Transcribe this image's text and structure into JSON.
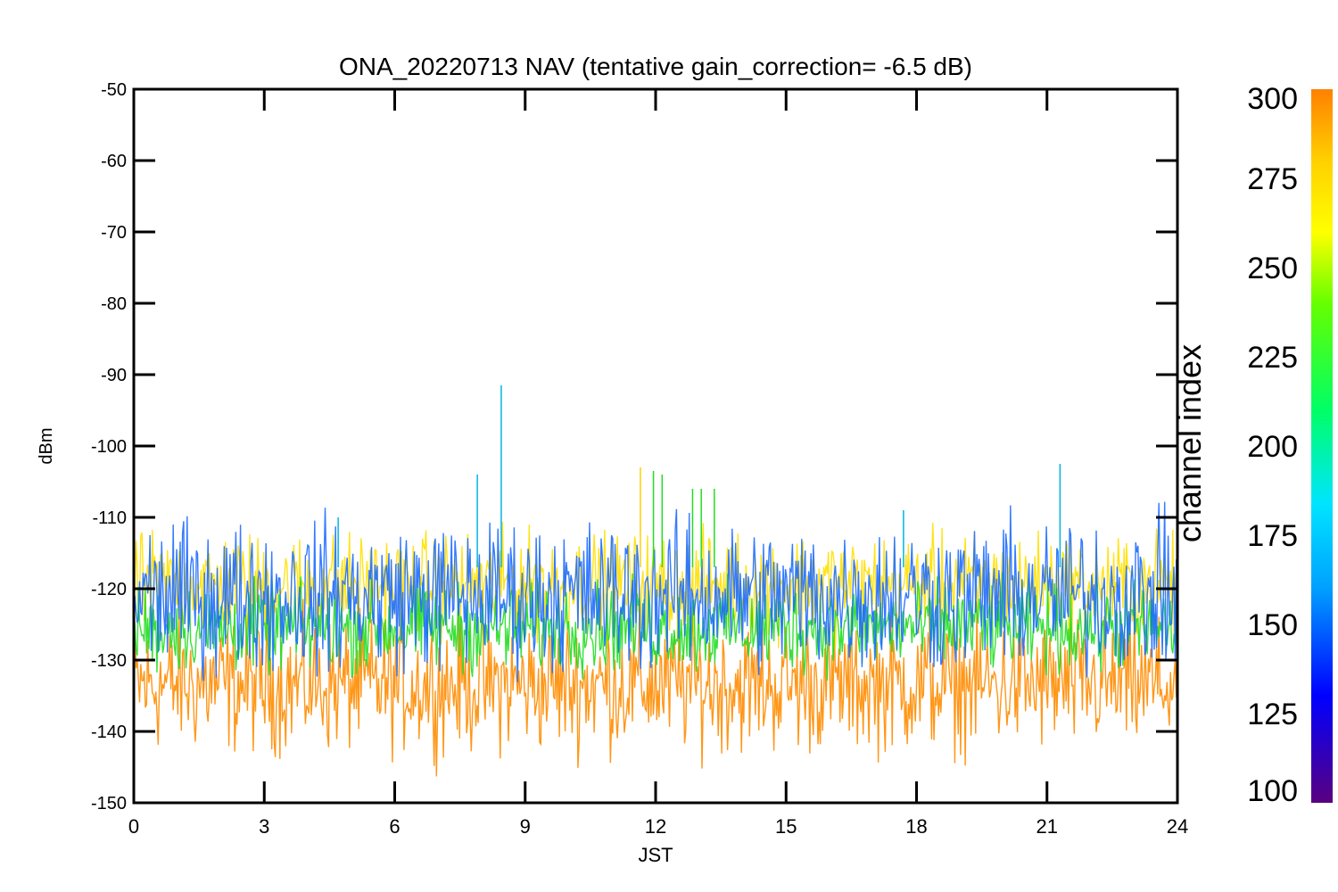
{
  "chart_data": {
    "type": "line",
    "title": "ONA_20220713 NAV (tentative gain_correction= -6.5 dB)",
    "xlabel": "JST",
    "ylabel": "dBm",
    "xlim": [
      0,
      24
    ],
    "ylim": [
      -150,
      -50
    ],
    "xticks": [
      "0",
      "3",
      "6",
      "9",
      "12",
      "15",
      "18",
      "21",
      "24"
    ],
    "yticks": [
      "-50",
      "-60",
      "-70",
      "-80",
      "-90",
      "-100",
      "-110",
      "-120",
      "-130",
      "-140",
      "-150"
    ],
    "grid": false,
    "colorbar": {
      "label": "channel index",
      "range": [
        100,
        300
      ],
      "ticks": [
        "300",
        "275",
        "250",
        "225",
        "200",
        "175",
        "150",
        "125",
        "100"
      ],
      "colors": [
        "#5a0080",
        "#0000ff",
        "#00a0ff",
        "#00e5ff",
        "#00ff66",
        "#66ff00",
        "#ffff00",
        "#ffd000",
        "#ff8000"
      ]
    },
    "bands": [
      {
        "channel_index": 300,
        "color": "#ff8c00",
        "y_mean": -133.5,
        "y_spread": 4.5
      },
      {
        "channel_index": 270,
        "color": "#ffe000",
        "y_mean": -119.5,
        "y_spread": 3.5
      },
      {
        "channel_index": 240,
        "color": "#22dd22",
        "y_mean": -125.5,
        "y_spread": 3.0
      },
      {
        "channel_index": 160,
        "color": "#1e6cff",
        "y_mean": -121.0,
        "y_spread": 5.0
      }
    ],
    "spikes": [
      {
        "x": 4.7,
        "y": -110,
        "color": "#00b4e6"
      },
      {
        "x": 7.9,
        "y": -104,
        "color": "#00b4e6"
      },
      {
        "x": 8.45,
        "y": -91.5,
        "color": "#00b4e6"
      },
      {
        "x": 11.65,
        "y": -103,
        "color": "#ffd000"
      },
      {
        "x": 11.95,
        "y": -103.5,
        "color": "#22dd22"
      },
      {
        "x": 12.15,
        "y": -104,
        "color": "#22dd22"
      },
      {
        "x": 12.85,
        "y": -106,
        "color": "#22dd22"
      },
      {
        "x": 13.05,
        "y": -106,
        "color": "#22dd22"
      },
      {
        "x": 13.35,
        "y": -106,
        "color": "#22dd22"
      },
      {
        "x": 17.7,
        "y": -109,
        "color": "#00b4e6"
      },
      {
        "x": 21.3,
        "y": -102.5,
        "color": "#00b4e6"
      }
    ]
  }
}
